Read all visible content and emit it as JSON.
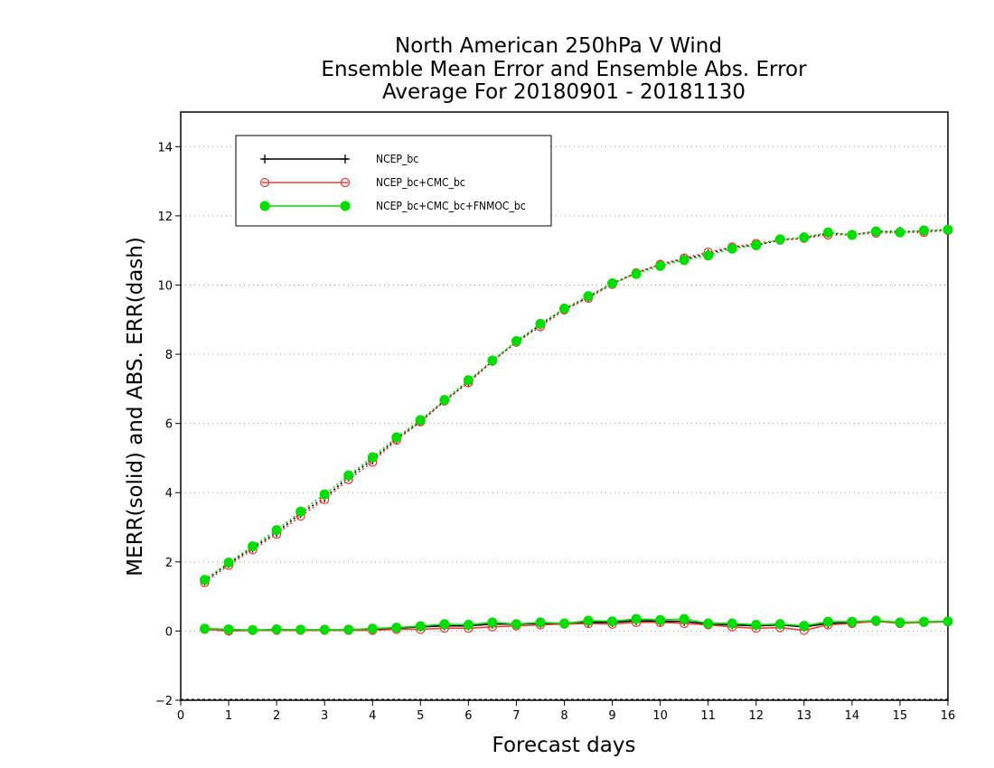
{
  "chart_data": {
    "type": "line",
    "title": [
      "North American 250hPa V Wind",
      "Ensemble Mean Error and Ensemble Abs. Error",
      "Average For 20180901 - 20181130"
    ],
    "xlabel": "Forecast days",
    "ylabel": "MERR(solid) and ABS. ERR(dash)",
    "xlim": [
      0,
      16
    ],
    "ylim": [
      -2,
      15
    ],
    "xticks": [
      0,
      1,
      2,
      3,
      4,
      5,
      6,
      7,
      8,
      9,
      10,
      11,
      12,
      13,
      14,
      15,
      16
    ],
    "yticks": [
      -2,
      0,
      2,
      4,
      6,
      8,
      10,
      12,
      14
    ],
    "grid": "horizontal dotted",
    "legend_position": "top-left",
    "x": [
      0.5,
      1,
      1.5,
      2,
      2.5,
      3,
      3.5,
      4,
      4.5,
      5,
      5.5,
      6,
      6.5,
      7,
      7.5,
      8,
      8.5,
      9,
      9.5,
      10,
      10.5,
      11,
      11.5,
      12,
      12.5,
      13,
      13.5,
      14,
      14.5,
      15,
      15.5,
      16
    ],
    "series": [
      {
        "name": "NCEP_bc",
        "color": "#000000",
        "marker": "plus",
        "merr": [
          0.05,
          0.02,
          0.02,
          0.03,
          0.03,
          0.03,
          0.03,
          0.05,
          0.08,
          0.12,
          0.15,
          0.15,
          0.2,
          0.2,
          0.22,
          0.22,
          0.25,
          0.25,
          0.3,
          0.28,
          0.28,
          0.2,
          0.18,
          0.15,
          0.18,
          0.12,
          0.22,
          0.25,
          0.28,
          0.25,
          0.25,
          0.27
        ],
        "abs_err": [
          1.45,
          1.95,
          2.4,
          2.85,
          3.4,
          3.85,
          4.45,
          4.95,
          5.55,
          6.05,
          6.65,
          7.2,
          7.8,
          8.35,
          8.85,
          9.3,
          9.65,
          10.05,
          10.35,
          10.6,
          10.75,
          10.9,
          11.1,
          11.15,
          11.3,
          11.35,
          11.5,
          11.45,
          11.55,
          11.55,
          11.55,
          11.6
        ]
      },
      {
        "name": "NCEP_bc+CMC_bc",
        "color": "#e8403c",
        "marker": "open-circle",
        "merr": [
          0.05,
          0.0,
          0.02,
          0.02,
          0.02,
          0.02,
          0.02,
          0.02,
          0.05,
          0.05,
          0.08,
          0.08,
          0.12,
          0.15,
          0.18,
          0.2,
          0.22,
          0.2,
          0.25,
          0.25,
          0.22,
          0.18,
          0.12,
          0.08,
          0.1,
          0.02,
          0.18,
          0.22,
          0.28,
          0.22,
          0.25,
          0.27
        ],
        "abs_err": [
          1.4,
          1.9,
          2.35,
          2.8,
          3.32,
          3.8,
          4.38,
          4.88,
          5.52,
          6.05,
          6.65,
          7.18,
          7.8,
          8.35,
          8.8,
          9.28,
          9.62,
          10.02,
          10.35,
          10.6,
          10.78,
          10.95,
          11.1,
          11.2,
          11.3,
          11.35,
          11.45,
          11.45,
          11.5,
          11.52,
          11.52,
          11.58
        ]
      },
      {
        "name": "NCEP_bc+CMC_bc+FNMOC_bc",
        "color": "#00dd00",
        "marker": "filled-circle",
        "merr": [
          0.07,
          0.05,
          0.03,
          0.05,
          0.04,
          0.04,
          0.04,
          0.07,
          0.1,
          0.14,
          0.2,
          0.18,
          0.25,
          0.2,
          0.25,
          0.22,
          0.3,
          0.28,
          0.35,
          0.32,
          0.35,
          0.22,
          0.22,
          0.18,
          0.2,
          0.15,
          0.27,
          0.27,
          0.3,
          0.25,
          0.27,
          0.28
        ],
        "abs_err": [
          1.48,
          1.98,
          2.45,
          2.92,
          3.45,
          3.95,
          4.5,
          5.02,
          5.6,
          6.1,
          6.68,
          7.25,
          7.82,
          8.38,
          8.88,
          9.32,
          9.68,
          10.05,
          10.32,
          10.55,
          10.72,
          10.85,
          11.05,
          11.15,
          11.32,
          11.38,
          11.52,
          11.45,
          11.55,
          11.52,
          11.58,
          11.6
        ]
      }
    ]
  }
}
